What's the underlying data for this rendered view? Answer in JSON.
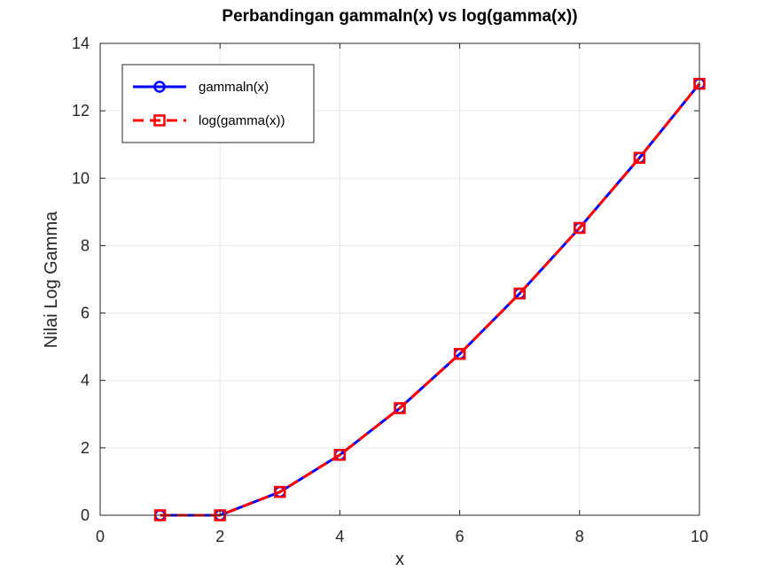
{
  "chart_data": {
    "type": "line",
    "title": "Perbandingan gammaln(x) vs log(gamma(x))",
    "xlabel": "x",
    "ylabel": "Nilai Log Gamma",
    "xlim": [
      0,
      10
    ],
    "ylim": [
      0,
      14
    ],
    "xticks": [
      0,
      2,
      4,
      6,
      8,
      10
    ],
    "yticks": [
      0,
      2,
      4,
      6,
      8,
      10,
      12,
      14
    ],
    "grid": true,
    "legend_position": "top-left",
    "x": [
      1,
      2,
      3,
      4,
      5,
      6,
      7,
      8,
      9,
      10
    ],
    "series": [
      {
        "name": "gammaln(x)",
        "values": [
          0,
          0,
          0.693,
          1.792,
          3.178,
          4.787,
          6.579,
          8.525,
          10.605,
          12.802
        ],
        "color": "#0000ff",
        "line": "solid",
        "marker": "circle"
      },
      {
        "name": "log(gamma(x))",
        "values": [
          0,
          0,
          0.693,
          1.792,
          3.178,
          4.787,
          6.579,
          8.525,
          10.605,
          12.802
        ],
        "color": "#ff0000",
        "line": "dashed",
        "marker": "square"
      }
    ]
  }
}
